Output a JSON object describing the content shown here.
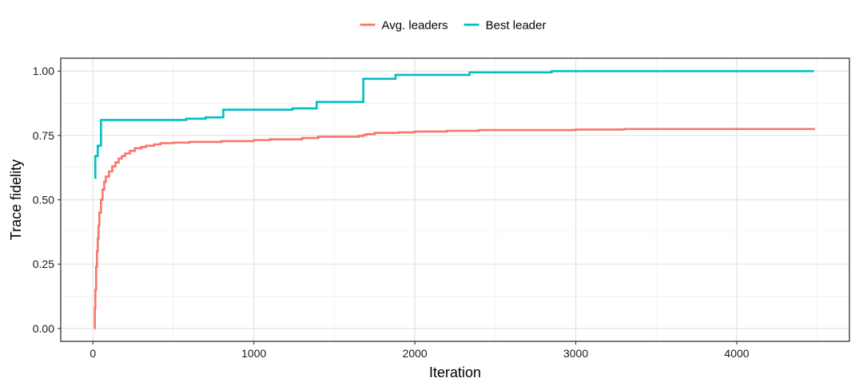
{
  "chart_data": {
    "type": "line",
    "title": "",
    "xlabel": "Iteration",
    "ylabel": "Trace fidelity",
    "xlim": [
      -200,
      4700
    ],
    "ylim": [
      -0.05,
      1.05
    ],
    "x_ticks": [
      0,
      1000,
      2000,
      3000,
      4000
    ],
    "x_tick_labels": [
      "0",
      "1000",
      "2000",
      "3000",
      "4000"
    ],
    "y_ticks": [
      0,
      0.25,
      0.5,
      0.75,
      1.0
    ],
    "y_tick_labels": [
      "0.00",
      "0.25",
      "0.50",
      "0.75",
      "1.00"
    ],
    "grid": true,
    "legend": "top-center",
    "series": [
      {
        "name": "Avg. leaders",
        "color": "#F8766D",
        "step": true,
        "points": [
          [
            10,
            0.0
          ],
          [
            12,
            0.08
          ],
          [
            15,
            0.15
          ],
          [
            20,
            0.24
          ],
          [
            25,
            0.3
          ],
          [
            30,
            0.35
          ],
          [
            35,
            0.4
          ],
          [
            40,
            0.45
          ],
          [
            50,
            0.5
          ],
          [
            60,
            0.54
          ],
          [
            70,
            0.57
          ],
          [
            80,
            0.59
          ],
          [
            100,
            0.61
          ],
          [
            120,
            0.63
          ],
          [
            140,
            0.645
          ],
          [
            160,
            0.66
          ],
          [
            180,
            0.67
          ],
          [
            200,
            0.68
          ],
          [
            230,
            0.69
          ],
          [
            260,
            0.7
          ],
          [
            300,
            0.705
          ],
          [
            330,
            0.71
          ],
          [
            380,
            0.715
          ],
          [
            420,
            0.72
          ],
          [
            500,
            0.722
          ],
          [
            600,
            0.725
          ],
          [
            800,
            0.728
          ],
          [
            1000,
            0.732
          ],
          [
            1100,
            0.735
          ],
          [
            1300,
            0.74
          ],
          [
            1400,
            0.745
          ],
          [
            1650,
            0.748
          ],
          [
            1680,
            0.752
          ],
          [
            1700,
            0.755
          ],
          [
            1750,
            0.76
          ],
          [
            1900,
            0.762
          ],
          [
            2000,
            0.765
          ],
          [
            2200,
            0.768
          ],
          [
            2400,
            0.771
          ],
          [
            3000,
            0.773
          ],
          [
            3300,
            0.775
          ],
          [
            4480,
            0.778
          ]
        ]
      },
      {
        "name": "Best leader",
        "color": "#00BFC4",
        "step": true,
        "points": [
          [
            10,
            0.585
          ],
          [
            15,
            0.67
          ],
          [
            30,
            0.71
          ],
          [
            50,
            0.81
          ],
          [
            550,
            0.81
          ],
          [
            580,
            0.815
          ],
          [
            700,
            0.82
          ],
          [
            810,
            0.85
          ],
          [
            1240,
            0.855
          ],
          [
            1390,
            0.88
          ],
          [
            1680,
            0.97
          ],
          [
            1880,
            0.985
          ],
          [
            2340,
            0.995
          ],
          [
            2850,
            1.0
          ],
          [
            4480,
            1.0
          ]
        ]
      }
    ]
  }
}
